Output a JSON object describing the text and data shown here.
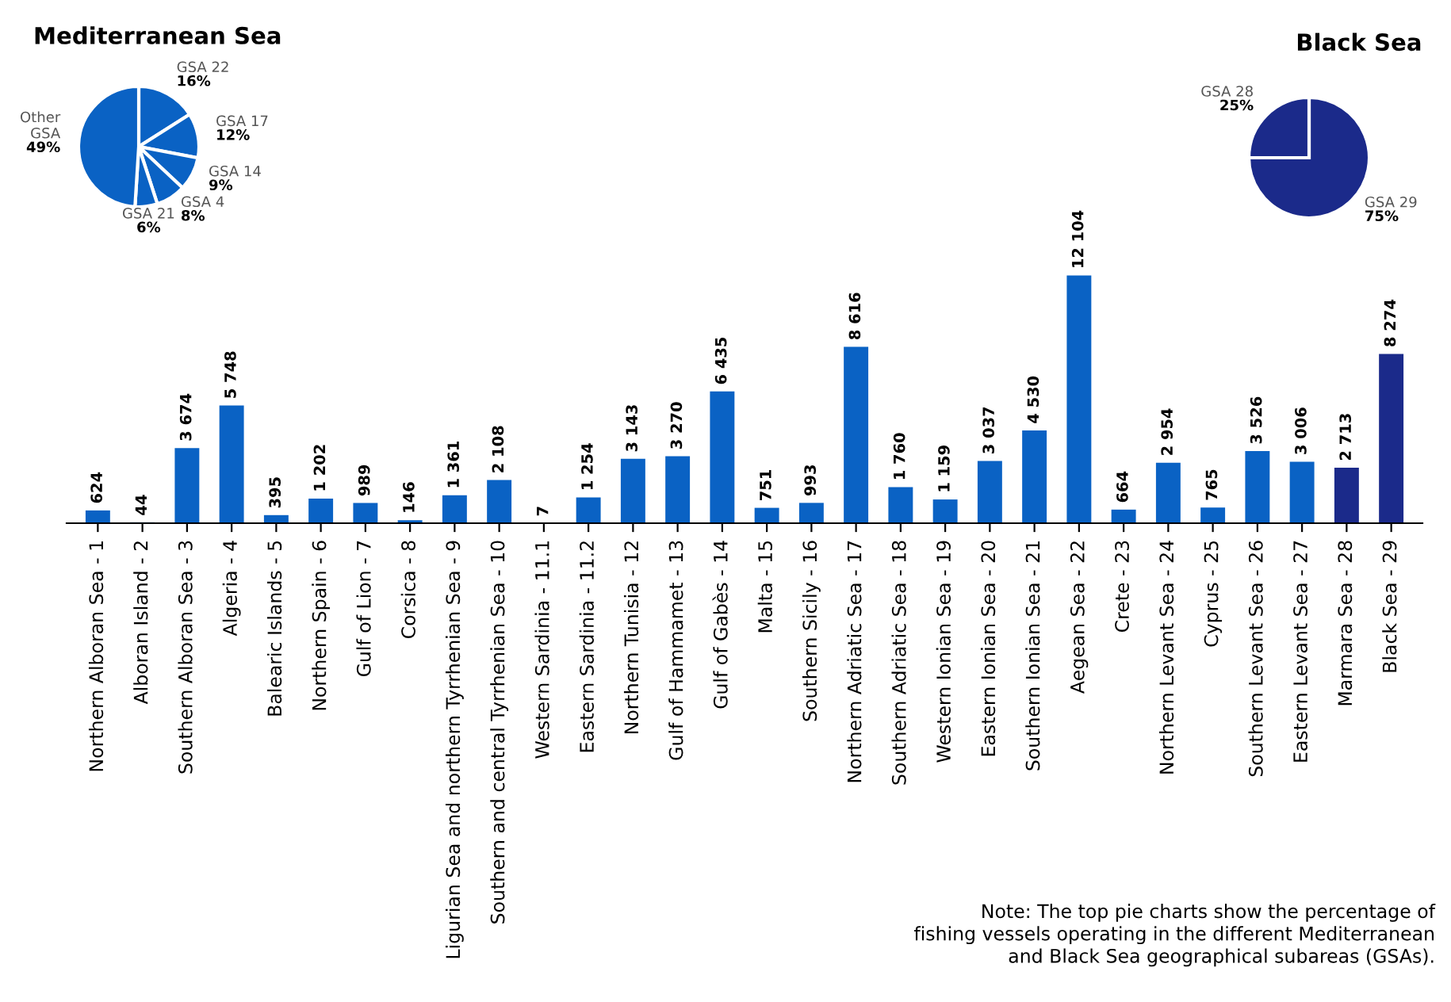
{
  "chart_data": [
    {
      "type": "pie",
      "title": "Mediterranean Sea",
      "categories": [
        "GSA 22",
        "GSA 17",
        "GSA 14",
        "GSA 4",
        "GSA 21",
        "Other\nGSA"
      ],
      "values": [
        16,
        12,
        9,
        8,
        6,
        49
      ],
      "value_labels": [
        "16%",
        "12%",
        "9%",
        "8%",
        "6%",
        "49%"
      ],
      "colors": [
        "#0a62c4",
        "#0a62c4",
        "#0a62c4",
        "#0a62c4",
        "#0a62c4",
        "#0a62c4"
      ]
    },
    {
      "type": "pie",
      "title": "Black Sea",
      "categories": [
        "GSA 29",
        "GSA 28"
      ],
      "values": [
        75,
        25
      ],
      "value_labels": [
        "75%",
        "25%"
      ],
      "colors": [
        "#1b2a8a",
        "#1b2a8a"
      ]
    },
    {
      "type": "bar",
      "categories": [
        "Northern Alboran Sea - 1",
        "Alboran Island - 2",
        "Southern Alboran Sea - 3",
        "Algeria - 4",
        "Balearic Islands - 5",
        "Northern Spain - 6",
        "Gulf of Lion - 7",
        "Corsica - 8",
        "Ligurian Sea and northern Tyrrhenian Sea - 9",
        "Southern and central Tyrrhenian Sea - 10",
        "Western Sardinia - 11.1",
        "Eastern Sardinia - 11.2",
        "Northern Tunisia - 12",
        "Gulf of Hammamet - 13",
        "Gulf of Gabès - 14",
        "Malta - 15",
        "Southern Sicily - 16",
        "Northern Adriatic Sea - 17",
        "Southern Adriatic Sea - 18",
        "Western Ionian Sea - 19",
        "Eastern Ionian Sea - 20",
        "Southern Ionian Sea - 21",
        "Aegean Sea - 22",
        "Crete - 23",
        "Northern Levant Sea - 24",
        "Cyprus - 25",
        "Southern Levant Sea - 26",
        "Eastern Levant Sea - 27",
        "Marmara Sea - 28",
        "Black Sea - 29"
      ],
      "values": [
        624,
        44,
        3674,
        5748,
        395,
        1202,
        989,
        146,
        1361,
        2108,
        7,
        1254,
        3143,
        3270,
        6435,
        751,
        993,
        8616,
        1760,
        1159,
        3037,
        4530,
        12104,
        664,
        2954,
        765,
        3526,
        3006,
        2713,
        8274
      ],
      "value_labels": [
        "624",
        "44",
        "3 674",
        "5 748",
        "395",
        "1 202",
        "989",
        "146",
        "1 361",
        "2 108",
        "7",
        "1 254",
        "3 143",
        "3 270",
        "6 435",
        "751",
        "993",
        "8 616",
        "1 760",
        "1 159",
        "3 037",
        "4 530",
        "12 104",
        "664",
        "2 954",
        "765",
        "3 526",
        "3 006",
        "2 713",
        "8 274"
      ],
      "colors": [
        "#0a62c4",
        "#0a62c4",
        "#0a62c4",
        "#0a62c4",
        "#0a62c4",
        "#0a62c4",
        "#0a62c4",
        "#0a62c4",
        "#0a62c4",
        "#0a62c4",
        "#0a62c4",
        "#0a62c4",
        "#0a62c4",
        "#0a62c4",
        "#0a62c4",
        "#0a62c4",
        "#0a62c4",
        "#0a62c4",
        "#0a62c4",
        "#0a62c4",
        "#0a62c4",
        "#0a62c4",
        "#0a62c4",
        "#0a62c4",
        "#0a62c4",
        "#0a62c4",
        "#0a62c4",
        "#0a62c4",
        "#1b2a8a",
        "#1b2a8a"
      ],
      "annotations": [
        "Note: The top pie charts show the percentage of\nfishing vessels operating in the different Mediterranean\nand Black Sea geographical subareas (GSAs)."
      ]
    }
  ]
}
